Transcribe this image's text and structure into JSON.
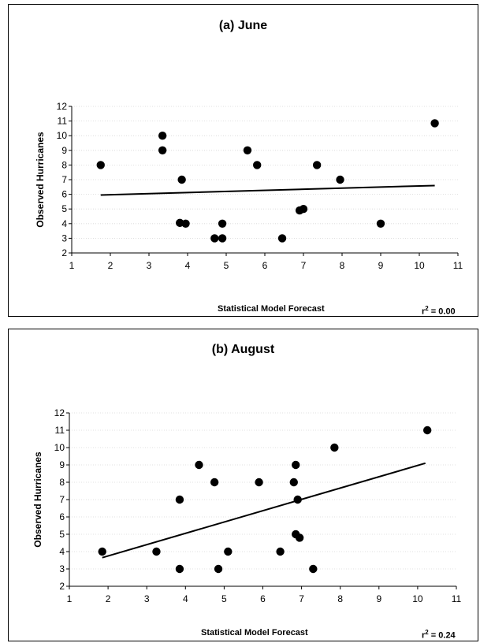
{
  "chart_data": [
    {
      "type": "scatter",
      "title": "(a) June",
      "xlabel": "Statistical Model Forecast",
      "ylabel": "Observed Hurricanes",
      "r2_label": "r",
      "r2_sup": "2",
      "r2_value": " = 0.00",
      "xlim": [
        1,
        11
      ],
      "ylim": [
        2,
        12
      ],
      "xticks": [
        "1",
        "2",
        "3",
        "4",
        "5",
        "6",
        "7",
        "8",
        "9",
        "10",
        "11"
      ],
      "yticks": [
        "2",
        "3",
        "4",
        "5",
        "6",
        "7",
        "8",
        "9",
        "10",
        "11",
        "12"
      ],
      "points": [
        {
          "x": 1.75,
          "y": 8
        },
        {
          "x": 3.35,
          "y": 10
        },
        {
          "x": 3.35,
          "y": 9
        },
        {
          "x": 3.85,
          "y": 7
        },
        {
          "x": 3.8,
          "y": 4.05
        },
        {
          "x": 3.95,
          "y": 4
        },
        {
          "x": 4.7,
          "y": 3
        },
        {
          "x": 4.9,
          "y": 4
        },
        {
          "x": 4.9,
          "y": 3
        },
        {
          "x": 5.55,
          "y": 9
        },
        {
          "x": 5.8,
          "y": 8
        },
        {
          "x": 6.45,
          "y": 3
        },
        {
          "x": 6.9,
          "y": 4.9
        },
        {
          "x": 7.0,
          "y": 5
        },
        {
          "x": 7.35,
          "y": 8
        },
        {
          "x": 7.95,
          "y": 7
        },
        {
          "x": 9.0,
          "y": 4
        },
        {
          "x": 10.4,
          "y": 10.85
        }
      ],
      "trend": [
        {
          "x": 1.75,
          "y": 5.95
        },
        {
          "x": 10.4,
          "y": 6.6
        }
      ]
    },
    {
      "type": "scatter",
      "title": "(b) August",
      "xlabel": "Statistical Model Forecast",
      "ylabel": "Observed Hurricanes",
      "r2_label": "r",
      "r2_sup": "2",
      "r2_value": " = 0.24",
      "xlim": [
        1,
        11
      ],
      "ylim": [
        2,
        12
      ],
      "xticks": [
        "1",
        "2",
        "3",
        "4",
        "5",
        "6",
        "7",
        "8",
        "9",
        "10",
        "11"
      ],
      "yticks": [
        "2",
        "3",
        "4",
        "5",
        "6",
        "7",
        "8",
        "9",
        "10",
        "11",
        "12"
      ],
      "points": [
        {
          "x": 1.85,
          "y": 4
        },
        {
          "x": 3.25,
          "y": 4
        },
        {
          "x": 3.85,
          "y": 7
        },
        {
          "x": 3.85,
          "y": 3
        },
        {
          "x": 4.35,
          "y": 9
        },
        {
          "x": 4.75,
          "y": 8
        },
        {
          "x": 4.85,
          "y": 3
        },
        {
          "x": 5.1,
          "y": 4
        },
        {
          "x": 5.9,
          "y": 8
        },
        {
          "x": 6.45,
          "y": 4
        },
        {
          "x": 6.8,
          "y": 8
        },
        {
          "x": 6.85,
          "y": 9
        },
        {
          "x": 6.9,
          "y": 7
        },
        {
          "x": 6.85,
          "y": 5
        },
        {
          "x": 6.95,
          "y": 4.8
        },
        {
          "x": 7.3,
          "y": 3
        },
        {
          "x": 7.85,
          "y": 10
        },
        {
          "x": 10.25,
          "y": 11
        }
      ],
      "trend": [
        {
          "x": 1.85,
          "y": 3.65
        },
        {
          "x": 10.2,
          "y": 9.1
        }
      ]
    }
  ]
}
